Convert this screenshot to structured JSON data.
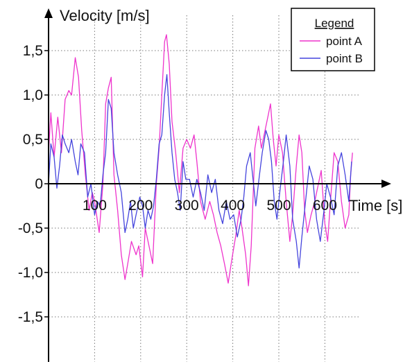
{
  "chart_data": {
    "type": "line",
    "ylabel": "Velocity [m/s]",
    "xlabel": "Time [s]",
    "x_ticks": [
      100,
      200,
      300,
      400,
      500,
      600
    ],
    "x_tick_labels": [
      "100",
      "200",
      "300",
      "400",
      "500",
      "600"
    ],
    "y_ticks": [
      1.5,
      1.0,
      0.5,
      0,
      -0.5,
      -1.0,
      -1.5
    ],
    "y_tick_labels": [
      "1,5",
      "1,0",
      "0,5",
      "0",
      "-0,5",
      "-1,0",
      "-1,5"
    ],
    "xlim": [
      0,
      680
    ],
    "ylim": [
      -2.1,
      1.75
    ],
    "grid": true,
    "legend": {
      "title": "Legend",
      "position": "top-right"
    },
    "series": [
      {
        "name": "point A",
        "color": "#ee33cc",
        "points": [
          [
            0,
            0.35
          ],
          [
            5,
            0.8
          ],
          [
            12,
            0.3
          ],
          [
            20,
            0.75
          ],
          [
            28,
            0.35
          ],
          [
            36,
            0.95
          ],
          [
            44,
            1.05
          ],
          [
            50,
            1.0
          ],
          [
            58,
            1.42
          ],
          [
            65,
            1.2
          ],
          [
            72,
            0.6
          ],
          [
            80,
            0.1
          ],
          [
            88,
            -0.3
          ],
          [
            95,
            -0.1
          ],
          [
            100,
            -0.2
          ],
          [
            110,
            -0.55
          ],
          [
            118,
            0.0
          ],
          [
            124,
            0.9
          ],
          [
            130,
            1.08
          ],
          [
            136,
            1.2
          ],
          [
            142,
            0.1
          ],
          [
            150,
            -0.3
          ],
          [
            158,
            -0.8
          ],
          [
            166,
            -1.08
          ],
          [
            172,
            -0.9
          ],
          [
            180,
            -0.65
          ],
          [
            190,
            -0.8
          ],
          [
            196,
            -0.7
          ],
          [
            204,
            -1.05
          ],
          [
            210,
            -0.5
          ],
          [
            218,
            -0.7
          ],
          [
            226,
            -0.9
          ],
          [
            234,
            0.0
          ],
          [
            240,
            0.4
          ],
          [
            246,
            1.0
          ],
          [
            252,
            1.6
          ],
          [
            256,
            1.68
          ],
          [
            262,
            1.35
          ],
          [
            268,
            0.7
          ],
          [
            276,
            0.35
          ],
          [
            284,
            -0.1
          ],
          [
            292,
            0.4
          ],
          [
            300,
            0.5
          ],
          [
            308,
            0.4
          ],
          [
            316,
            0.55
          ],
          [
            322,
            0.25
          ],
          [
            330,
            -0.2
          ],
          [
            340,
            -0.4
          ],
          [
            350,
            -0.2
          ],
          [
            358,
            -0.35
          ],
          [
            366,
            -0.55
          ],
          [
            374,
            -0.7
          ],
          [
            382,
            -0.9
          ],
          [
            390,
            -1.12
          ],
          [
            398,
            -0.85
          ],
          [
            406,
            -0.6
          ],
          [
            414,
            -0.3
          ],
          [
            420,
            -0.5
          ],
          [
            428,
            -0.8
          ],
          [
            434,
            -1.15
          ],
          [
            440,
            -0.7
          ],
          [
            448,
            0.4
          ],
          [
            456,
            0.65
          ],
          [
            462,
            0.4
          ],
          [
            470,
            0.6
          ],
          [
            476,
            0.75
          ],
          [
            482,
            0.9
          ],
          [
            488,
            0.5
          ],
          [
            494,
            0.2
          ],
          [
            500,
            0.55
          ],
          [
            508,
            0.35
          ],
          [
            516,
            -0.2
          ],
          [
            524,
            -0.65
          ],
          [
            530,
            -0.35
          ],
          [
            538,
            0.2
          ],
          [
            544,
            0.55
          ],
          [
            550,
            0.35
          ],
          [
            556,
            -0.3
          ],
          [
            562,
            -0.55
          ],
          [
            570,
            -0.35
          ],
          [
            578,
            -0.2
          ],
          [
            586,
            0.0
          ],
          [
            592,
            0.15
          ],
          [
            600,
            -0.45
          ],
          [
            606,
            -0.65
          ],
          [
            612,
            -0.2
          ],
          [
            620,
            0.35
          ],
          [
            628,
            0.25
          ],
          [
            636,
            -0.2
          ],
          [
            644,
            -0.5
          ],
          [
            652,
            -0.35
          ],
          [
            656,
            0.1
          ],
          [
            660,
            0.35
          ]
        ]
      },
      {
        "name": "point B",
        "color": "#4444dd",
        "points": [
          [
            0,
            0.0
          ],
          [
            5,
            0.45
          ],
          [
            12,
            0.3
          ],
          [
            18,
            -0.05
          ],
          [
            24,
            0.2
          ],
          [
            30,
            0.55
          ],
          [
            36,
            0.45
          ],
          [
            44,
            0.35
          ],
          [
            50,
            0.5
          ],
          [
            58,
            0.25
          ],
          [
            64,
            0.1
          ],
          [
            70,
            0.45
          ],
          [
            78,
            0.35
          ],
          [
            85,
            -0.15
          ],
          [
            92,
            0.0
          ],
          [
            100,
            -0.35
          ],
          [
            106,
            -0.2
          ],
          [
            112,
            -0.25
          ],
          [
            118,
            0.1
          ],
          [
            124,
            0.35
          ],
          [
            130,
            0.95
          ],
          [
            136,
            0.85
          ],
          [
            142,
            0.35
          ],
          [
            150,
            0.1
          ],
          [
            158,
            -0.1
          ],
          [
            166,
            -0.55
          ],
          [
            172,
            -0.4
          ],
          [
            178,
            -0.2
          ],
          [
            184,
            -0.5
          ],
          [
            192,
            -0.3
          ],
          [
            198,
            -0.15
          ],
          [
            204,
            -0.25
          ],
          [
            210,
            -0.5
          ],
          [
            216,
            -0.3
          ],
          [
            222,
            -0.4
          ],
          [
            228,
            -0.25
          ],
          [
            234,
            0.05
          ],
          [
            240,
            0.45
          ],
          [
            246,
            0.55
          ],
          [
            252,
            1.0
          ],
          [
            257,
            1.23
          ],
          [
            262,
            0.8
          ],
          [
            268,
            0.35
          ],
          [
            274,
            0.05
          ],
          [
            280,
            -0.1
          ],
          [
            286,
            -0.3
          ],
          [
            292,
            0.25
          ],
          [
            298,
            0.05
          ],
          [
            306,
            0.05
          ],
          [
            314,
            -0.15
          ],
          [
            322,
            0.05
          ],
          [
            330,
            -0.1
          ],
          [
            338,
            -0.3
          ],
          [
            346,
            0.1
          ],
          [
            354,
            -0.1
          ],
          [
            362,
            0.05
          ],
          [
            370,
            -0.3
          ],
          [
            378,
            -0.45
          ],
          [
            386,
            -0.2
          ],
          [
            394,
            -0.4
          ],
          [
            402,
            -0.35
          ],
          [
            410,
            -0.6
          ],
          [
            418,
            -0.4
          ],
          [
            424,
            -0.15
          ],
          [
            430,
            0.2
          ],
          [
            438,
            0.35
          ],
          [
            444,
            0.05
          ],
          [
            450,
            -0.25
          ],
          [
            458,
            0.1
          ],
          [
            464,
            0.35
          ],
          [
            472,
            0.6
          ],
          [
            478,
            0.5
          ],
          [
            484,
            0.25
          ],
          [
            490,
            -0.2
          ],
          [
            496,
            -0.4
          ],
          [
            502,
            -0.1
          ],
          [
            510,
            0.25
          ],
          [
            516,
            0.55
          ],
          [
            524,
            0.2
          ],
          [
            530,
            -0.4
          ],
          [
            538,
            -0.65
          ],
          [
            544,
            -0.95
          ],
          [
            550,
            -0.6
          ],
          [
            558,
            -0.2
          ],
          [
            566,
            0.2
          ],
          [
            574,
            0.05
          ],
          [
            582,
            -0.4
          ],
          [
            590,
            -0.65
          ],
          [
            598,
            -0.3
          ],
          [
            604,
            0.0
          ],
          [
            612,
            -0.15
          ],
          [
            620,
            -0.35
          ],
          [
            628,
            0.2
          ],
          [
            636,
            0.35
          ],
          [
            644,
            0.1
          ],
          [
            652,
            -0.2
          ],
          [
            658,
            0.25
          ]
        ]
      }
    ]
  }
}
